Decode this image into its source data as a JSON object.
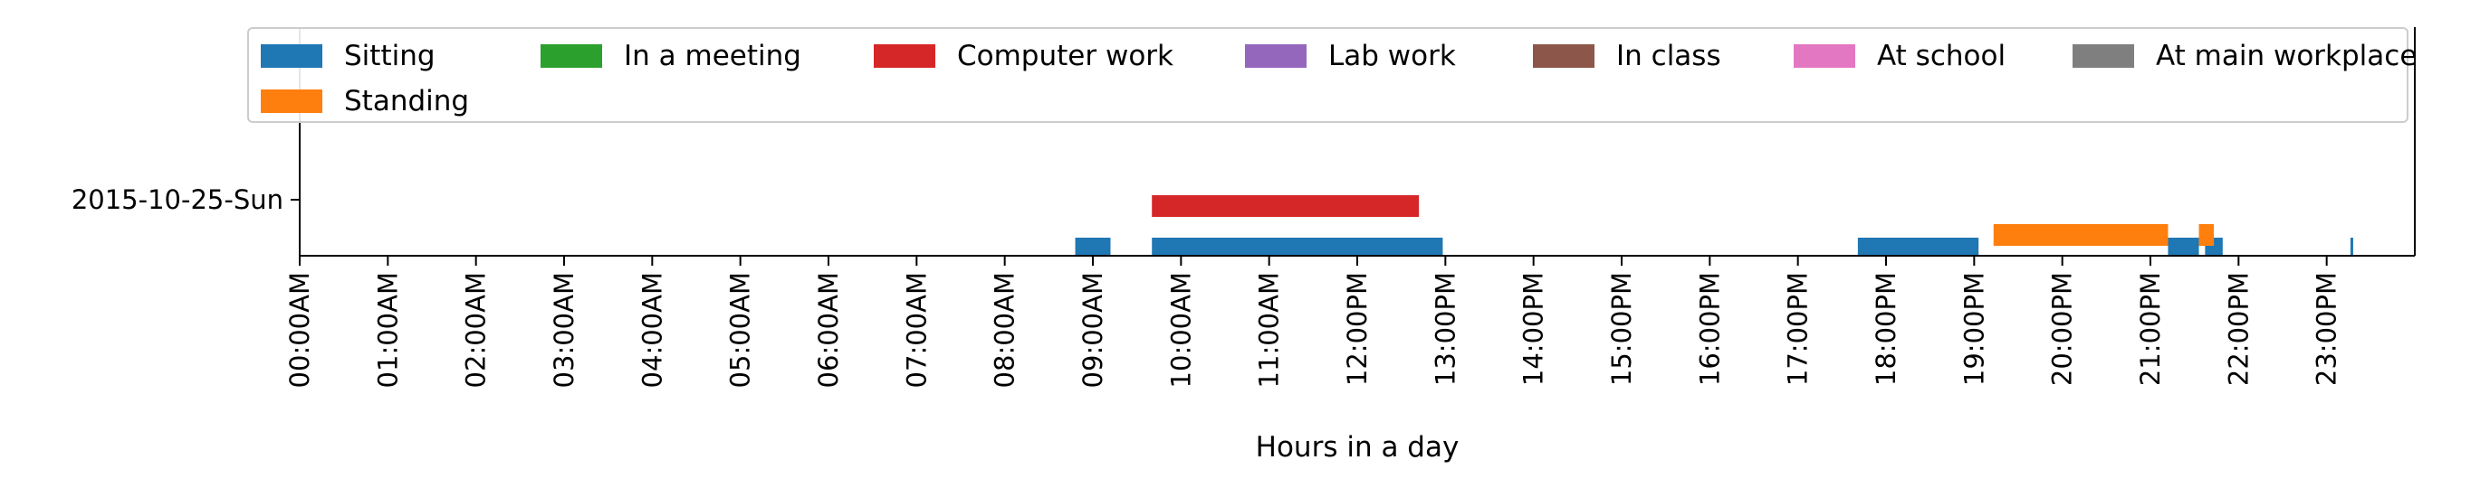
{
  "chart_data": {
    "type": "bar",
    "orientation": "horizontal-timeline",
    "xlabel": "Hours in a day",
    "ylabel": "",
    "xlim": [
      0,
      24
    ],
    "x_ticks": [
      "00:00AM",
      "01:00AM",
      "02:00AM",
      "03:00AM",
      "04:00AM",
      "05:00AM",
      "06:00AM",
      "07:00AM",
      "08:00AM",
      "09:00AM",
      "10:00AM",
      "11:00AM",
      "12:00PM",
      "13:00PM",
      "14:00PM",
      "15:00PM",
      "16:00PM",
      "17:00PM",
      "18:00PM",
      "19:00PM",
      "20:00PM",
      "21:00PM",
      "22:00PM",
      "23:00PM"
    ],
    "categories": [
      "2015-10-25-Sun"
    ],
    "legend_position": "top",
    "series": [
      {
        "name": "Sitting",
        "color": "#1f77b4",
        "intervals": [
          [
            8.8,
            9.2
          ],
          [
            9.67,
            12.97
          ],
          [
            17.68,
            19.05
          ],
          [
            21.2,
            21.55
          ],
          [
            21.62,
            21.82
          ],
          [
            23.27,
            23.3
          ]
        ]
      },
      {
        "name": "Standing",
        "color": "#ff7f0e",
        "intervals": [
          [
            19.22,
            21.2
          ],
          [
            21.55,
            21.72
          ]
        ]
      },
      {
        "name": "In a meeting",
        "color": "#2ca02c",
        "intervals": []
      },
      {
        "name": "Computer work",
        "color": "#d62728",
        "intervals": [
          [
            9.67,
            12.7
          ]
        ]
      },
      {
        "name": "Lab work",
        "color": "#9467bd",
        "intervals": []
      },
      {
        "name": "In class",
        "color": "#8c564b",
        "intervals": []
      },
      {
        "name": "At school",
        "color": "#e377c2",
        "intervals": []
      },
      {
        "name": "At main workplace",
        "color": "#7f7f7f",
        "intervals": []
      }
    ]
  }
}
